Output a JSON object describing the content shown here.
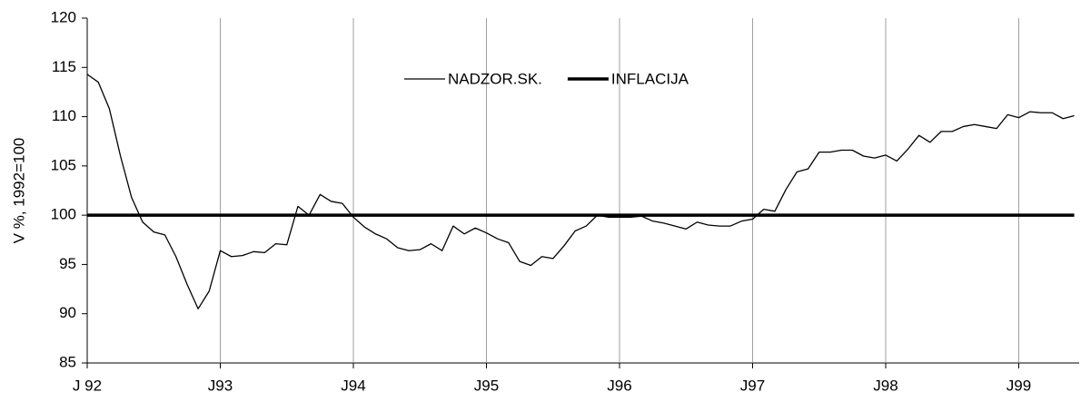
{
  "chart_data": {
    "type": "line",
    "categories": [
      "J 92",
      null,
      null,
      null,
      null,
      null,
      null,
      null,
      null,
      null,
      null,
      null,
      "J93",
      null,
      null,
      null,
      null,
      null,
      null,
      null,
      null,
      null,
      null,
      null,
      "J94",
      null,
      null,
      null,
      null,
      null,
      null,
      null,
      null,
      null,
      null,
      null,
      "J95",
      null,
      null,
      null,
      null,
      null,
      null,
      null,
      null,
      null,
      null,
      null,
      "J96",
      null,
      null,
      null,
      null,
      null,
      null,
      null,
      null,
      null,
      null,
      null,
      "J97",
      null,
      null,
      null,
      null,
      null,
      null,
      null,
      null,
      null,
      null,
      null,
      "J98",
      null,
      null,
      null,
      null,
      null,
      null,
      null,
      null,
      null,
      null,
      null,
      "J99",
      null,
      null,
      null,
      null,
      null
    ],
    "series": [
      {
        "name": "NADZOR.SK.",
        "color": "#000000",
        "width": 1.3,
        "values": [
          114.3,
          113.5,
          110.8,
          106,
          101.8,
          99.3,
          98.3,
          98,
          95.8,
          93,
          90.5,
          92.3,
          96.4,
          95.8,
          95.9,
          96.3,
          96.2,
          97.1,
          97,
          100.9,
          100,
          102.1,
          101.4,
          101.2,
          99.8,
          98.8,
          98.1,
          97.6,
          96.7,
          96.4,
          96.5,
          97.1,
          96.4,
          98.9,
          98.1,
          98.7,
          98.2,
          97.6,
          97.2,
          95.3,
          94.9,
          95.8,
          95.6,
          96.9,
          98.4,
          98.9,
          100,
          99.8,
          99.8,
          99.8,
          99.9,
          99.4,
          99.2,
          98.9,
          98.6,
          99.3,
          99,
          98.9,
          98.9,
          99.4,
          99.6,
          100.6,
          100.4,
          102.6,
          104.4,
          104.7,
          106.4,
          106.4,
          106.6,
          106.6,
          106,
          105.8,
          106.1,
          105.5,
          106.7,
          108.1,
          107.4,
          108.5,
          108.5,
          109,
          109.2,
          109,
          108.8,
          110.2,
          109.9,
          110.5,
          110.4,
          110.4,
          109.8,
          110.1
        ]
      },
      {
        "name": "INFLACIJA",
        "color": "#000000",
        "width": 3.5,
        "values": [
          100,
          100,
          100,
          100,
          100,
          100,
          100,
          100,
          100,
          100,
          100,
          100,
          100,
          100,
          100,
          100,
          100,
          100,
          100,
          100,
          100,
          100,
          100,
          100,
          100,
          100,
          100,
          100,
          100,
          100,
          100,
          100,
          100,
          100,
          100,
          100,
          100,
          100,
          100,
          100,
          100,
          100,
          100,
          100,
          100,
          100,
          100,
          100,
          100,
          100,
          100,
          100,
          100,
          100,
          100,
          100,
          100,
          100,
          100,
          100,
          100,
          100,
          100,
          100,
          100,
          100,
          100,
          100,
          100,
          100,
          100,
          100,
          100,
          100,
          100,
          100,
          100,
          100,
          100,
          100,
          100,
          100,
          100,
          100,
          100,
          100,
          100,
          100,
          100,
          100
        ]
      }
    ],
    "y_label": "V %, 1992=100",
    "ylim": [
      85,
      120
    ],
    "yticks": [
      85,
      90,
      95,
      100,
      105,
      110,
      115,
      120
    ],
    "xgrid": true,
    "legend": "top"
  }
}
